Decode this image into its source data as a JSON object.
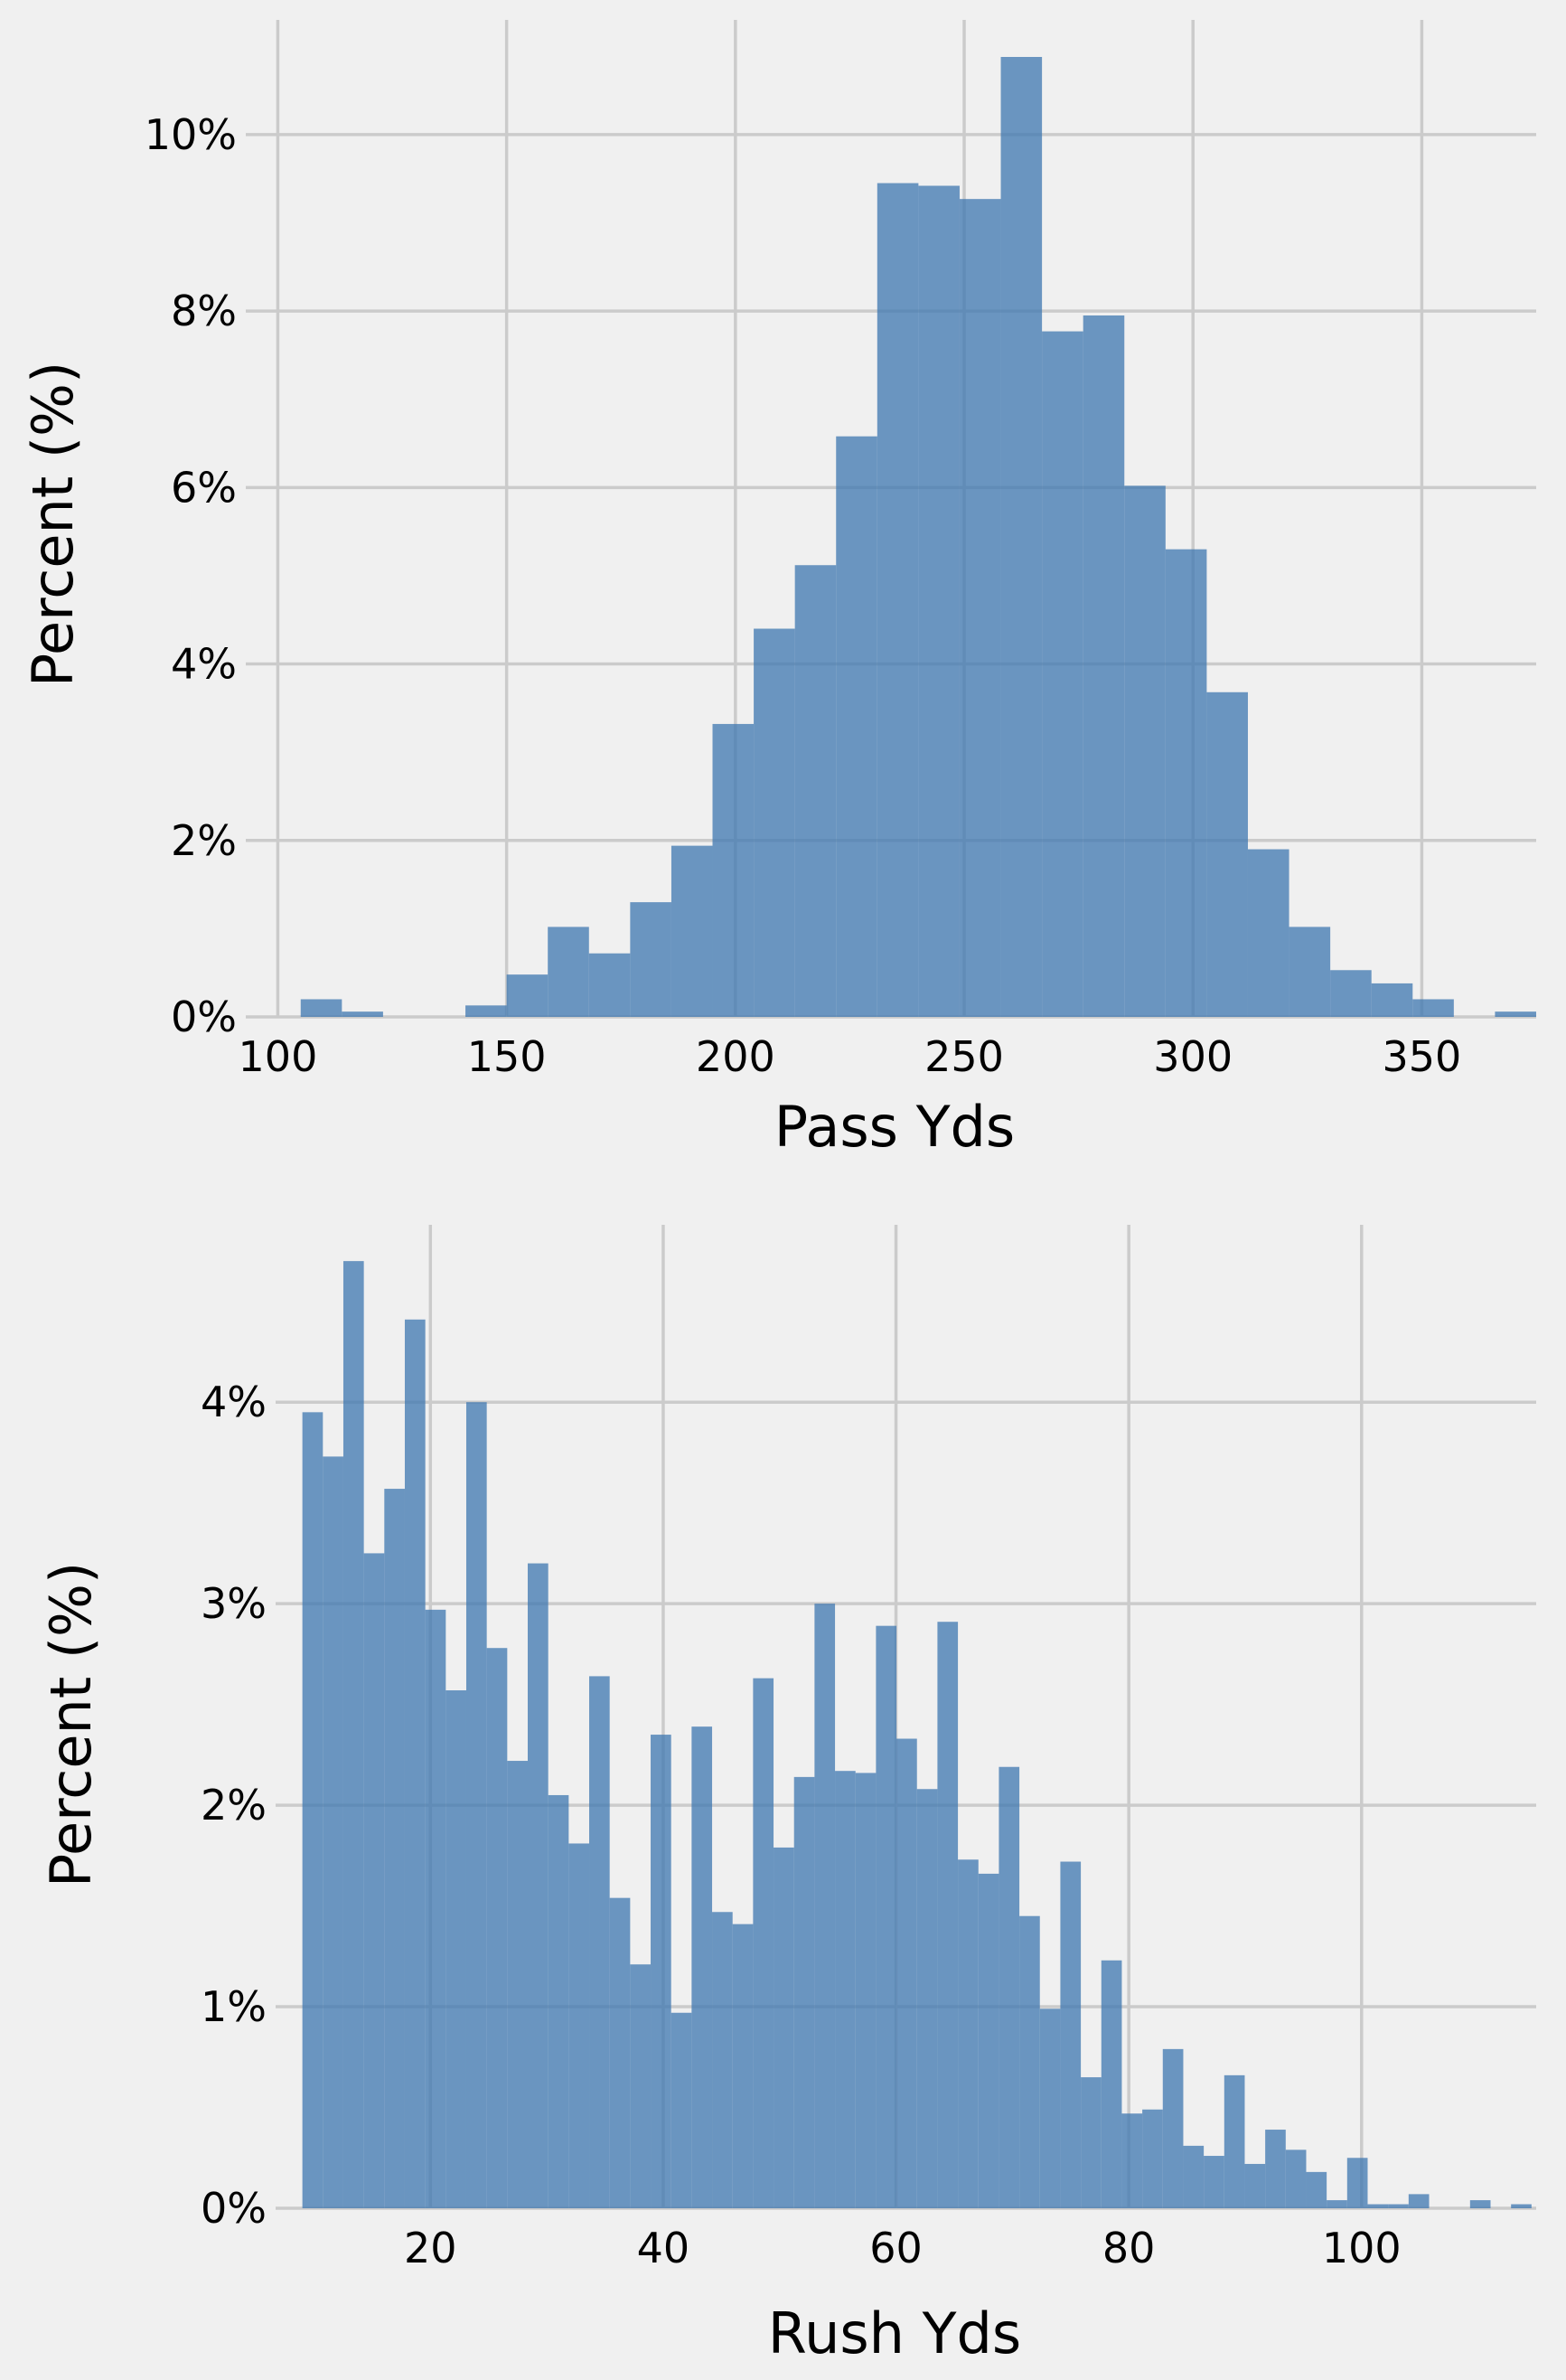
{
  "colors": {
    "bar": "#3d77b0",
    "bar_opacity": 0.75,
    "grid": "#cbcbcb",
    "background": "#f0f0f0"
  },
  "chart_data": [
    {
      "type": "bar",
      "xlabel": "Pass Yds",
      "ylabel": "Percent (%)",
      "xlim": [
        93,
        375
      ],
      "ylim": [
        0,
        11.3
      ],
      "xticks": [
        100,
        150,
        200,
        250,
        300,
        350
      ],
      "yticks": [
        0,
        2,
        4,
        6,
        8,
        10
      ],
      "ytick_labels": [
        "0%",
        "2%",
        "4%",
        "6%",
        "8%",
        "10%"
      ],
      "grid": true,
      "bin_start": 105,
      "bin_width": 9,
      "values": [
        0.2,
        0.06,
        0,
        0,
        0.13,
        0.48,
        1.02,
        0.72,
        1.3,
        1.94,
        3.32,
        4.4,
        5.12,
        6.58,
        9.45,
        9.42,
        9.27,
        10.88,
        7.77,
        7.95,
        6.02,
        5.3,
        3.68,
        1.9,
        1.02,
        0.53,
        0.38,
        0.2,
        0,
        0.06
      ]
    },
    {
      "type": "bar",
      "xlabel": "Rush Yds",
      "ylabel": "Percent (%)",
      "xlim": [
        6.7,
        115
      ],
      "ylim": [
        0,
        4.88
      ],
      "xticks": [
        20,
        40,
        60,
        80,
        100
      ],
      "yticks": [
        0,
        1,
        2,
        3,
        4
      ],
      "ytick_labels": [
        "0%",
        "1%",
        "2%",
        "3%",
        "4%"
      ],
      "grid": true,
      "bin_start": 9,
      "bin_width": 1.76,
      "values": [
        3.95,
        3.73,
        4.7,
        3.25,
        3.57,
        4.41,
        2.97,
        2.57,
        4.0,
        2.78,
        2.22,
        3.2,
        2.05,
        1.81,
        2.64,
        1.54,
        1.21,
        2.35,
        0.97,
        2.39,
        1.47,
        1.41,
        2.63,
        1.79,
        2.14,
        3.0,
        2.17,
        2.16,
        2.89,
        2.33,
        2.08,
        2.91,
        1.73,
        1.66,
        2.19,
        1.45,
        0.99,
        1.72,
        0.65,
        1.23,
        0.47,
        0.49,
        0.79,
        0.31,
        0.26,
        0.66,
        0.22,
        0.39,
        0.29,
        0.18,
        0.04,
        0.25,
        0.02,
        0.02,
        0.07,
        0,
        0,
        0.04,
        0,
        0.02
      ]
    }
  ]
}
